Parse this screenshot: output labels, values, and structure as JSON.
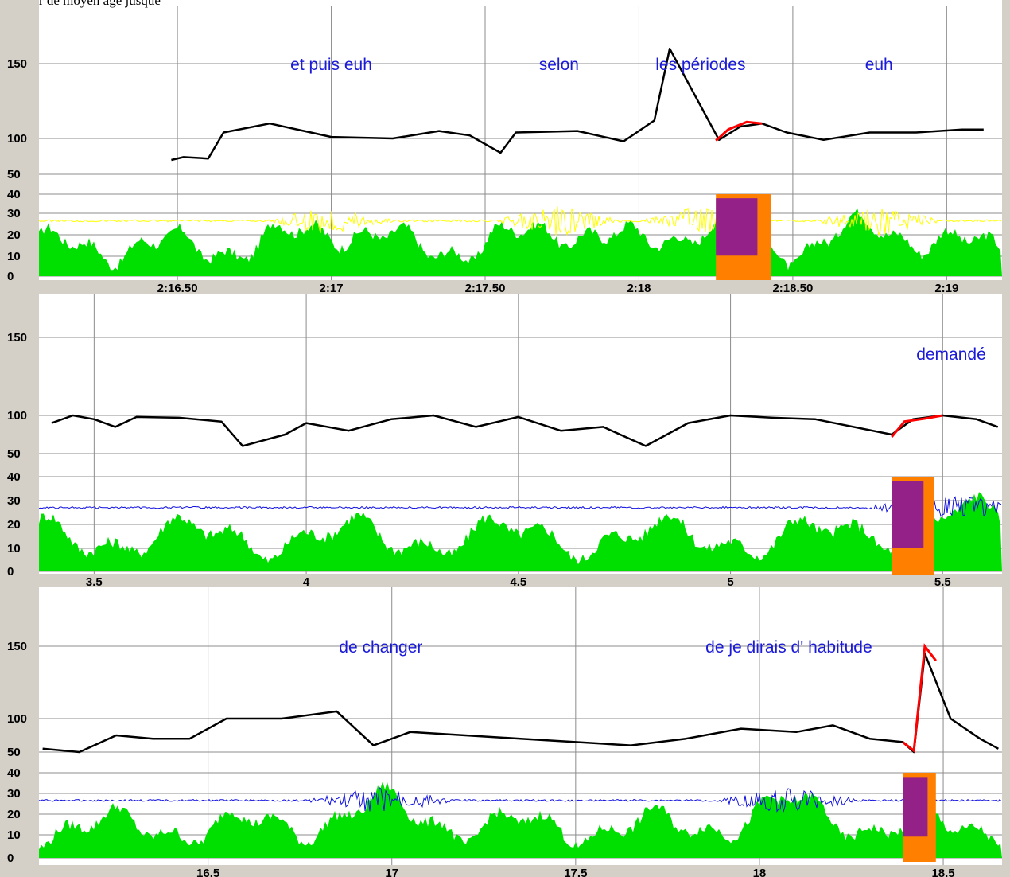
{
  "caption": "à partir de moyen âge jusque",
  "colors": {
    "panel_bg": "#d4d0c8",
    "plot_bg": "#ffffff",
    "grid": "#8c8c8c",
    "pitch": "#000000",
    "pitch_highlight": "#ff0000",
    "intensity": "#00e000",
    "waveform_yellow": "#ffff00",
    "waveform_blue": "#1010e0",
    "highlight_fill": "#ff8000",
    "highlight_overlap": "#8010a0",
    "annotation_text": "#1a1ad8"
  },
  "chart_data": [
    {
      "type": "line",
      "panel": 1,
      "yticks": [
        "150",
        "100",
        "50",
        "40",
        "30",
        "20",
        "10",
        "0"
      ],
      "xticks": [
        {
          "x": 136.5,
          "label": "2:16.50"
        },
        {
          "x": 137.0,
          "label": "2:17"
        },
        {
          "x": 137.5,
          "label": "2:17.50"
        },
        {
          "x": 138.0,
          "label": "2:18"
        },
        {
          "x": 138.5,
          "label": "2:18.50"
        },
        {
          "x": 139.0,
          "label": "2:19"
        }
      ],
      "xlim": [
        136.05,
        139.18
      ],
      "waveform_color": "yellow",
      "annotations": [
        {
          "text": "et puis euh",
          "x": 137.0
        },
        {
          "text": "selon",
          "x": 137.74
        },
        {
          "text": "les périodes",
          "x": 138.2
        },
        {
          "text": "euh",
          "x": 138.78
        }
      ],
      "highlight": {
        "x0": 138.25,
        "x1": 138.43
      },
      "pitch_curve": [
        [
          136.48,
          70
        ],
        [
          136.52,
          74
        ],
        [
          136.6,
          72
        ],
        [
          136.65,
          104
        ],
        [
          136.8,
          110
        ],
        [
          137.0,
          101
        ],
        [
          137.2,
          100
        ],
        [
          137.35,
          105
        ],
        [
          137.45,
          102
        ],
        [
          137.55,
          80
        ],
        [
          137.6,
          104
        ],
        [
          137.8,
          105
        ],
        [
          137.95,
          96
        ],
        [
          138.05,
          112
        ],
        [
          138.1,
          160
        ],
        [
          138.26,
          98
        ],
        [
          138.33,
          108
        ],
        [
          138.4,
          110
        ],
        [
          138.48,
          104
        ],
        [
          138.6,
          98
        ],
        [
          138.75,
          104
        ],
        [
          138.9,
          104
        ],
        [
          139.05,
          106
        ],
        [
          139.12,
          106
        ]
      ],
      "pitch_highlight": [
        [
          138.25,
          97
        ],
        [
          138.29,
          106
        ],
        [
          138.35,
          111
        ],
        [
          138.4,
          110
        ]
      ]
    },
    {
      "type": "line",
      "panel": 2,
      "yticks": [
        "150",
        "100",
        "50",
        "40",
        "30",
        "20",
        "10",
        "0"
      ],
      "xticks": [
        {
          "x": 3.5,
          "label": "3.5"
        },
        {
          "x": 4.0,
          "label": "4"
        },
        {
          "x": 4.5,
          "label": "4.5"
        },
        {
          "x": 5.0,
          "label": "5"
        },
        {
          "x": 5.5,
          "label": "5.5"
        }
      ],
      "xlim": [
        3.37,
        5.64
      ],
      "waveform_color": "blue",
      "annotations": [
        {
          "text": "demandé",
          "x": 5.52
        }
      ],
      "highlight": {
        "x0": 5.38,
        "x1": 5.48
      },
      "pitch_curve": [
        [
          3.4,
          90
        ],
        [
          3.45,
          100
        ],
        [
          3.5,
          95
        ],
        [
          3.55,
          85
        ],
        [
          3.6,
          98
        ],
        [
          3.7,
          97
        ],
        [
          3.8,
          92
        ],
        [
          3.85,
          60
        ],
        [
          3.95,
          75
        ],
        [
          4.0,
          90
        ],
        [
          4.1,
          80
        ],
        [
          4.2,
          95
        ],
        [
          4.3,
          100
        ],
        [
          4.4,
          85
        ],
        [
          4.5,
          98
        ],
        [
          4.6,
          80
        ],
        [
          4.7,
          85
        ],
        [
          4.8,
          60
        ],
        [
          4.9,
          90
        ],
        [
          5.0,
          100
        ],
        [
          5.1,
          97
        ],
        [
          5.2,
          95
        ],
        [
          5.38,
          75
        ],
        [
          5.43,
          95
        ],
        [
          5.5,
          100
        ],
        [
          5.58,
          95
        ],
        [
          5.63,
          85
        ]
      ],
      "pitch_highlight": [
        [
          5.38,
          72
        ],
        [
          5.41,
          92
        ],
        [
          5.46,
          96
        ],
        [
          5.5,
          100
        ]
      ]
    },
    {
      "type": "line",
      "panel": 3,
      "yticks": [
        "150",
        "100",
        "50",
        "40",
        "30",
        "20",
        "10",
        "0"
      ],
      "xticks": [
        {
          "x": 16.5,
          "label": "16.5"
        },
        {
          "x": 17.0,
          "label": "17"
        },
        {
          "x": 17.5,
          "label": "17.5"
        },
        {
          "x": 18.0,
          "label": "18"
        },
        {
          "x": 18.5,
          "label": "18.5"
        }
      ],
      "xlim": [
        16.04,
        18.66
      ],
      "waveform_color": "blue",
      "annotations": [
        {
          "text": "de changer",
          "x": 16.97
        },
        {
          "text": "de je dirais d' habitude",
          "x": 18.08
        }
      ],
      "highlight": {
        "x0": 18.39,
        "x1": 18.48
      },
      "pitch_curve": [
        [
          16.05,
          55
        ],
        [
          16.15,
          50
        ],
        [
          16.25,
          75
        ],
        [
          16.35,
          70
        ],
        [
          16.45,
          70
        ],
        [
          16.55,
          100
        ],
        [
          16.7,
          100
        ],
        [
          16.85,
          105
        ],
        [
          16.95,
          60
        ],
        [
          17.05,
          80
        ],
        [
          17.2,
          75
        ],
        [
          17.35,
          70
        ],
        [
          17.5,
          65
        ],
        [
          17.65,
          60
        ],
        [
          17.8,
          70
        ],
        [
          17.95,
          85
        ],
        [
          18.1,
          80
        ],
        [
          18.2,
          90
        ],
        [
          18.3,
          70
        ],
        [
          18.39,
          65
        ],
        [
          18.42,
          50
        ],
        [
          18.45,
          145
        ],
        [
          18.52,
          100
        ],
        [
          18.6,
          70
        ],
        [
          18.65,
          55
        ]
      ],
      "pitch_highlight": [
        [
          18.39,
          65
        ],
        [
          18.42,
          52
        ],
        [
          18.45,
          150
        ],
        [
          18.48,
          140
        ]
      ]
    }
  ]
}
